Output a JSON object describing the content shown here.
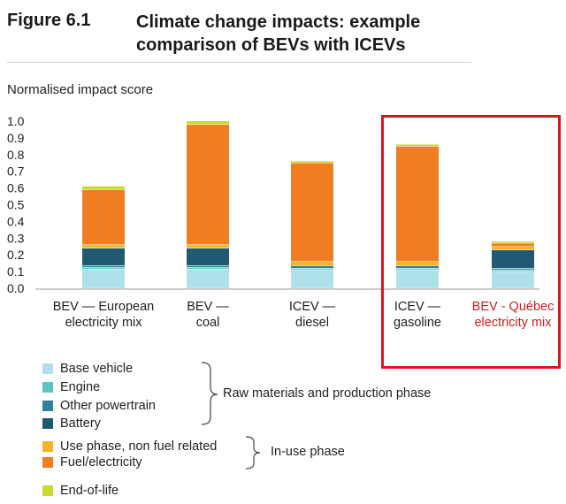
{
  "figure": {
    "number": "Figure 6.1",
    "title": "Climate change impacts: example comparison of BEVs with ICEVs"
  },
  "chart_data": {
    "type": "bar",
    "stacked": true,
    "ylabel": "Normalised impact score",
    "ylim": [
      0,
      1.0
    ],
    "yticks": [
      "1.0",
      "0.9",
      "0.8",
      "0.7",
      "0.6",
      "0.5",
      "0.4",
      "0.3",
      "0.2",
      "0.1",
      "0.0"
    ],
    "grid": false,
    "categories": [
      {
        "line1": "BEV — European",
        "line2": "electricity mix",
        "highlight": false
      },
      {
        "line1": "BEV —",
        "line2": "coal",
        "highlight": false
      },
      {
        "line1": "ICEV —",
        "line2": "diesel",
        "highlight": false
      },
      {
        "line1": "ICEV —",
        "line2": "gasoline",
        "highlight": false
      },
      {
        "line1": "BEV - Québec",
        "line2": "electricity mix",
        "highlight": true
      }
    ],
    "series": [
      {
        "name": "Base vehicle",
        "color": "#aee0ea",
        "values": [
          0.115,
          0.115,
          0.11,
          0.11,
          0.1
        ]
      },
      {
        "name": "Engine",
        "color": "#5fc3c3",
        "values": [
          0.01,
          0.01,
          0.01,
          0.01,
          0.01
        ]
      },
      {
        "name": "Other powertrain",
        "color": "#2f8098",
        "values": [
          0.01,
          0.01,
          0.015,
          0.015,
          0.01
        ]
      },
      {
        "name": "Battery",
        "color": "#1f5a72",
        "values": [
          0.105,
          0.105,
          0.0,
          0.0,
          0.11
        ]
      },
      {
        "name": "Use phase, non fuel related",
        "color": "#f6b41e",
        "values": [
          0.02,
          0.02,
          0.025,
          0.025,
          0.02
        ]
      },
      {
        "name": "Fuel/electricity",
        "color": "#f07d22",
        "values": [
          0.33,
          0.72,
          0.59,
          0.69,
          0.02
        ]
      },
      {
        "name": "End-of-life",
        "color": "#cadb2c",
        "values": [
          0.02,
          0.02,
          0.01,
          0.01,
          0.01
        ]
      }
    ],
    "legend_groups": [
      {
        "label": "Raw materials and production phase"
      },
      {
        "label": "In-use phase"
      }
    ]
  }
}
